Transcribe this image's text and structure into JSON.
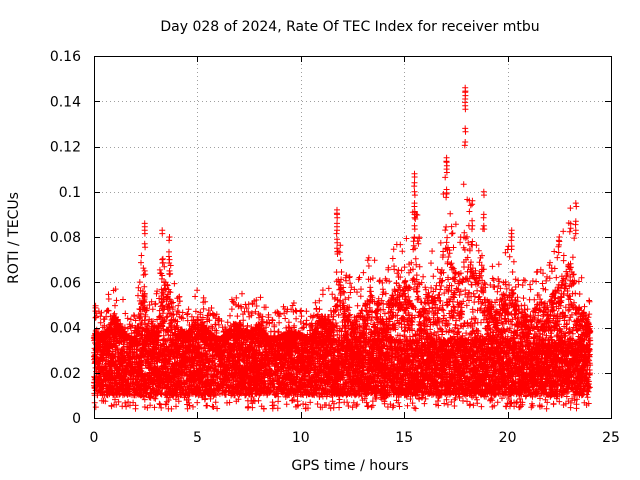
{
  "chart_data": {
    "type": "scatter",
    "title": "Day 028 of 2024, Rate Of TEC Index for receiver mtbu",
    "xlabel": "GPS time / hours",
    "ylabel": "ROTI / TECUs",
    "xlim": [
      0,
      25
    ],
    "ylim": [
      0,
      0.16
    ],
    "grid": true,
    "xticks": [
      0,
      5,
      10,
      15,
      20,
      25
    ],
    "xtick_labels": [
      "0",
      "5",
      "10",
      "15",
      "20",
      "25"
    ],
    "yticks": [
      0,
      0.02,
      0.04,
      0.06,
      0.08,
      0.1,
      0.12,
      0.14,
      0.16
    ],
    "ytick_labels": [
      "0",
      "0.02",
      "0.04",
      "0.06",
      "0.08",
      "0.1",
      "0.12",
      "0.14",
      "0.16"
    ],
    "marker": "+",
    "color": "#ff0000",
    "series": [
      {
        "name": "ROTI",
        "base_band": [
          0.01,
          0.035
        ],
        "time_range": [
          0,
          24
        ],
        "envelope": {
          "x": [
            0,
            0.5,
            1,
            1.5,
            2,
            2.4,
            2.6,
            3,
            3.4,
            3.6,
            4,
            4.5,
            5,
            6,
            7,
            7.5,
            8,
            8.5,
            9,
            9.5,
            10,
            10.5,
            11,
            11.5,
            11.8,
            12,
            12.5,
            13,
            13.4,
            13.8,
            14.2,
            14.6,
            15,
            15.3,
            15.5,
            15.7,
            16,
            16.3,
            16.6,
            17,
            17.3,
            17.8,
            18,
            18.2,
            18.5,
            18.8,
            19,
            19.5,
            20,
            20.2,
            20.5,
            21,
            21.5,
            22,
            22.5,
            23,
            23.2,
            23.5,
            24
          ],
          "y": [
            0.05,
            0.05,
            0.062,
            0.05,
            0.045,
            0.085,
            0.05,
            0.055,
            0.083,
            0.08,
            0.055,
            0.05,
            0.06,
            0.045,
            0.058,
            0.05,
            0.057,
            0.045,
            0.048,
            0.052,
            0.05,
            0.045,
            0.063,
            0.055,
            0.092,
            0.072,
            0.06,
            0.065,
            0.075,
            0.07,
            0.068,
            0.08,
            0.075,
            0.095,
            0.108,
            0.085,
            0.07,
            0.078,
            0.07,
            0.115,
            0.09,
            0.083,
            0.146,
            0.096,
            0.085,
            0.1,
            0.07,
            0.065,
            0.085,
            0.078,
            0.065,
            0.06,
            0.068,
            0.07,
            0.08,
            0.095,
            0.087,
            0.065,
            0.055
          ]
        },
        "spikes": [
          {
            "x": 2.45,
            "y": [
              0.086,
              0.083,
              0.077,
              0.065,
              0.055
            ]
          },
          {
            "x": 3.3,
            "y": [
              0.083,
              0.07,
              0.063
            ]
          },
          {
            "x": 3.65,
            "y": [
              0.08,
              0.07,
              0.065
            ]
          },
          {
            "x": 11.75,
            "y": [
              0.092,
              0.09,
              0.086,
              0.083,
              0.079,
              0.075
            ]
          },
          {
            "x": 15.5,
            "y": [
              0.108,
              0.104,
              0.1,
              0.095,
              0.09,
              0.085
            ]
          },
          {
            "x": 17.05,
            "y": [
              0.115,
              0.113,
              0.11,
              0.101,
              0.099
            ]
          },
          {
            "x": 17.95,
            "y": [
              0.146,
              0.144,
              0.141,
              0.138,
              0.128,
              0.122
            ]
          },
          {
            "x": 18.3,
            "y": [
              0.096,
              0.085,
              0.078
            ]
          },
          {
            "x": 18.85,
            "y": [
              0.1,
              0.09,
              0.085
            ]
          },
          {
            "x": 20.2,
            "y": [
              0.083,
              0.08,
              0.076
            ]
          },
          {
            "x": 22.5,
            "y": [
              0.08,
              0.078
            ]
          },
          {
            "x": 23.3,
            "y": [
              0.095,
              0.087,
              0.083
            ]
          }
        ],
        "seed": 28
      }
    ]
  }
}
